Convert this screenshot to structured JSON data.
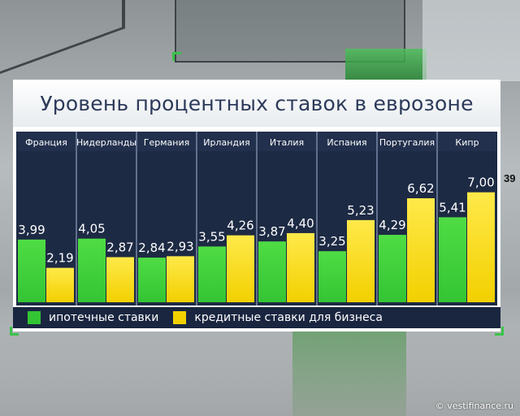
{
  "title": "Уровень процентных ставок в еврозоне",
  "watermark": "© vestifinance.ru",
  "colors": {
    "mortgage": "#34c534",
    "business": "#f2d000",
    "panel": "#1d2a44"
  },
  "legend": [
    {
      "name": "ипотечные ставки",
      "color": "#34c534"
    },
    {
      "name": "кредитные ставки для бизнеса",
      "color": "#f2d000"
    }
  ],
  "chart_data": {
    "type": "bar",
    "title": "Уровень процентных ставок в еврозоне",
    "categories": [
      "Франция",
      "Нидерланды",
      "Германия",
      "Ирландия",
      "Италия",
      "Испания",
      "Португалия",
      "Кипр"
    ],
    "series": [
      {
        "name": "ипотечные ставки",
        "values": [
          3.99,
          4.05,
          2.84,
          3.55,
          3.87,
          3.25,
          4.29,
          5.41
        ]
      },
      {
        "name": "кредитные ставки для бизнеса",
        "values": [
          2.19,
          2.87,
          2.93,
          4.26,
          4.4,
          5.23,
          6.62,
          7.0
        ]
      }
    ],
    "value_labels": [
      [
        "3,99",
        "4,05",
        "2,84",
        "3,55",
        "3,87",
        "3,25",
        "4,29",
        "5,41"
      ],
      [
        "2,19",
        "2,87",
        "2,93",
        "4,26",
        "4,40",
        "5,23",
        "6,62",
        "7,00"
      ]
    ],
    "ylim": [
      0,
      9
    ],
    "grid": false,
    "legend_position": "bottom-left"
  }
}
